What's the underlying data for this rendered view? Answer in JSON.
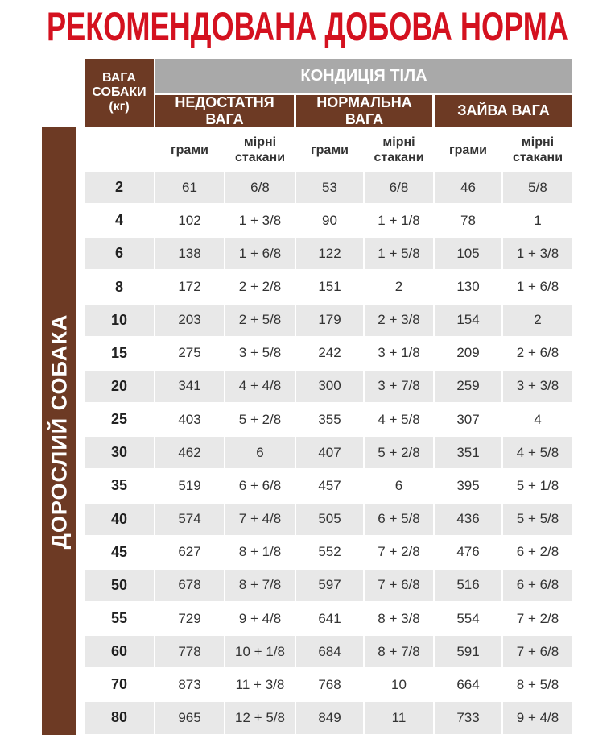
{
  "header": {
    "title": "РЕКОМЕНДОВАНА ДОБОВА НОРМА"
  },
  "table": {
    "side_label": "ДОРОСЛИЙ СОБАКА",
    "weight_label": "ВАГА СОБАКИ (кг)",
    "condition_label": "КОНДИЦІЯ ТІЛА",
    "groups": [
      "НЕДОСТАТНЯ ВАГА",
      "НОРМАЛЬНА ВАГА",
      "ЗАЙВА ВАГА"
    ],
    "subheaders": [
      "грами",
      "мірні стакани",
      "грами",
      "мірні стакани",
      "грами",
      "мірні стакани"
    ],
    "rows": [
      [
        2,
        61,
        "6/8",
        53,
        "6/8",
        46,
        "5/8"
      ],
      [
        4,
        102,
        "1 + 3/8",
        90,
        "1 + 1/8",
        78,
        "1"
      ],
      [
        6,
        138,
        "1 + 6/8",
        122,
        "1 + 5/8",
        105,
        "1 + 3/8"
      ],
      [
        8,
        172,
        "2 + 2/8",
        151,
        "2",
        130,
        "1 + 6/8"
      ],
      [
        10,
        203,
        "2 + 5/8",
        179,
        "2 + 3/8",
        154,
        "2"
      ],
      [
        15,
        275,
        "3 + 5/8",
        242,
        "3 + 1/8",
        209,
        "2 + 6/8"
      ],
      [
        20,
        341,
        "4 + 4/8",
        300,
        "3 + 7/8",
        259,
        "3 + 3/8"
      ],
      [
        25,
        403,
        "5 + 2/8",
        355,
        "4 + 5/8",
        307,
        "4"
      ],
      [
        30,
        462,
        "6",
        407,
        "5 + 2/8",
        351,
        "4 + 5/8"
      ],
      [
        35,
        519,
        "6 + 6/8",
        457,
        "6",
        395,
        "5 + 1/8"
      ],
      [
        40,
        574,
        "7 + 4/8",
        505,
        "6 + 5/8",
        436,
        "5 + 5/8"
      ],
      [
        45,
        627,
        "8 + 1/8",
        552,
        "7 + 2/8",
        476,
        "6 + 2/8"
      ],
      [
        50,
        678,
        "8 + 7/8",
        597,
        "7 + 6/8",
        516,
        "6 + 6/8"
      ],
      [
        55,
        729,
        "9 + 4/8",
        641,
        "8 + 3/8",
        554,
        "7 + 2/8"
      ],
      [
        60,
        778,
        "10 + 1/8",
        684,
        "8 + 7/8",
        591,
        "7 + 6/8"
      ],
      [
        70,
        873,
        "11 + 3/8",
        768,
        "10",
        664,
        "8 + 5/8"
      ],
      [
        80,
        965,
        "12 + 5/8",
        849,
        "11",
        733,
        "9 + 4/8"
      ]
    ]
  }
}
